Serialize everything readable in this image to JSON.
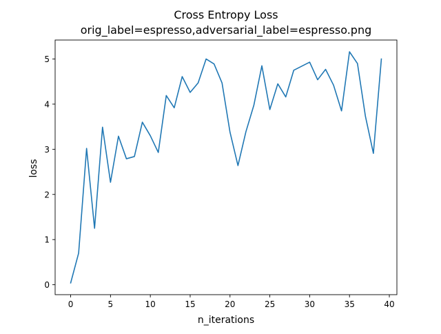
{
  "chart_data": {
    "type": "line",
    "title": "Cross Entropy Loss",
    "subtitle": "orig_label=espresso,adversarial_label=espresso.png",
    "xlabel": "n_iterations",
    "ylabel": "loss",
    "xlim": [
      -1.95,
      40.95
    ],
    "ylim": [
      -0.22,
      5.42
    ],
    "xticks": [
      0,
      5,
      10,
      15,
      20,
      25,
      30,
      35,
      40
    ],
    "yticks": [
      0,
      1,
      2,
      3,
      4,
      5
    ],
    "grid": false,
    "series": [
      {
        "color": "#1f77b4",
        "x": [
          0,
          1,
          2,
          3,
          4,
          5,
          6,
          7,
          8,
          9,
          10,
          11,
          12,
          13,
          14,
          15,
          16,
          17,
          18,
          19,
          20,
          21,
          22,
          23,
          24,
          25,
          26,
          27,
          28,
          29,
          30,
          31,
          32,
          33,
          34,
          35,
          36,
          37,
          38,
          39
        ],
        "y": [
          0.04,
          0.7,
          3.02,
          1.25,
          3.49,
          2.27,
          3.29,
          2.79,
          2.84,
          3.6,
          3.3,
          2.93,
          4.19,
          3.92,
          4.61,
          4.26,
          4.47,
          5.0,
          4.89,
          4.47,
          3.38,
          2.64,
          3.39,
          3.98,
          4.85,
          3.88,
          4.45,
          4.16,
          4.75,
          4.84,
          4.93,
          4.54,
          4.77,
          4.42,
          3.85,
          5.16,
          4.9,
          3.73,
          2.91,
          5.0
        ]
      }
    ]
  }
}
